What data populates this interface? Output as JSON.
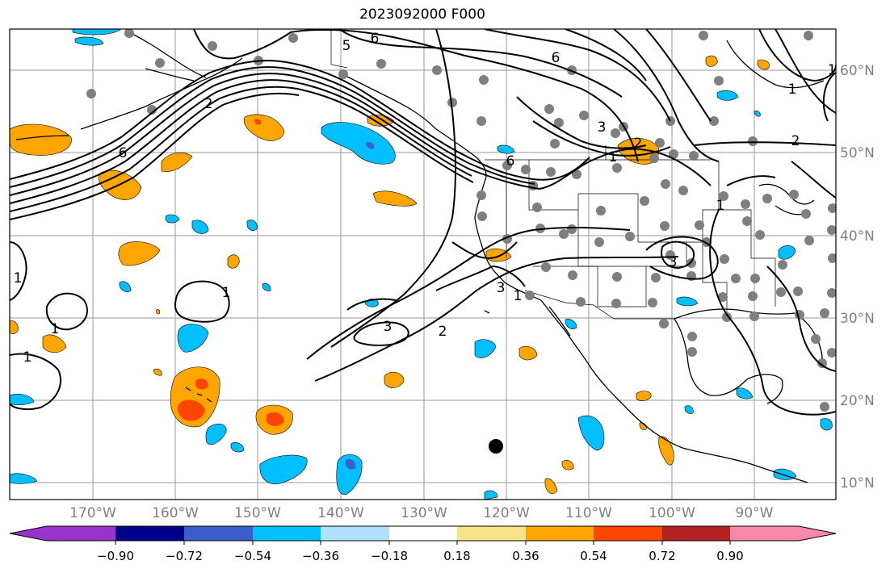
{
  "title": "2023092000 F000",
  "map": {
    "lon_labels": [
      "170°W",
      "160°W",
      "150°W",
      "140°W",
      "130°W",
      "120°W",
      "110°W",
      "100°W",
      "90°W"
    ],
    "lat_labels": [
      "60°N",
      "50°N",
      "40°N",
      "30°N",
      "20°N",
      "10°N"
    ],
    "contour_labels": [
      "5",
      "6",
      "6",
      "6",
      "2",
      "1",
      "2",
      "3",
      "6",
      "1",
      "1",
      "1",
      "1",
      "3",
      "2",
      "3",
      "1",
      "3",
      "2",
      "1",
      "1",
      "1"
    ],
    "storm_marker": "black-dot"
  },
  "colorbar": {
    "ticks": [
      "−0.90",
      "−0.72",
      "−0.54",
      "−0.36",
      "−0.18",
      "0.18",
      "0.36",
      "0.54",
      "0.72",
      "0.90"
    ],
    "colors": [
      "#9a32cd",
      "#00008b",
      "#3a5fcd",
      "#00bfff",
      "#b0e2ff",
      "#ffffff",
      "#f7e48a",
      "#ffa500",
      "#ff4500",
      "#b22222",
      "#f888a8"
    ]
  }
}
